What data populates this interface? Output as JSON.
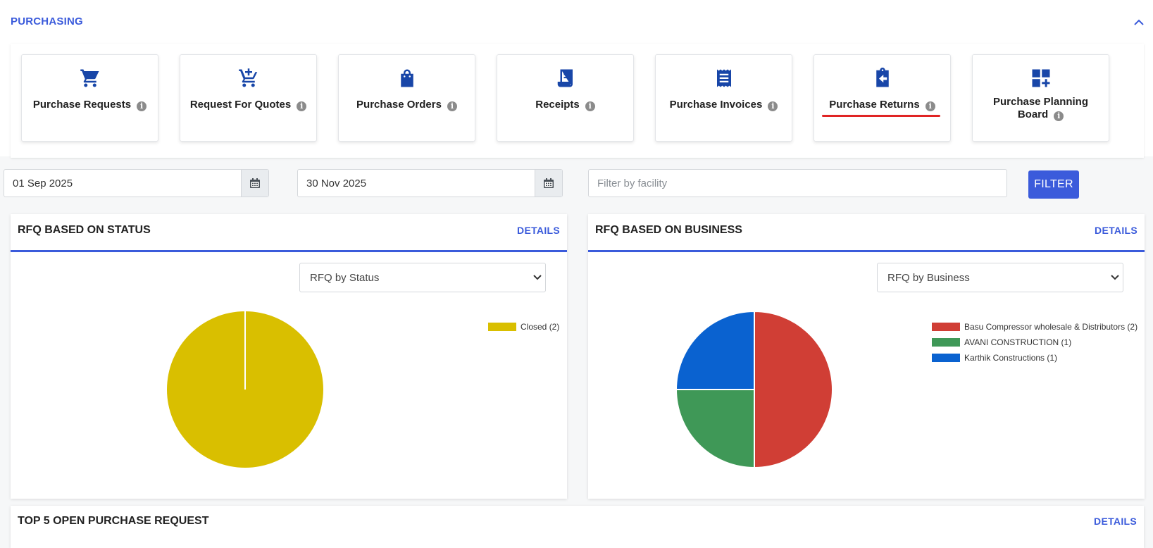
{
  "section": {
    "title": "PURCHASING"
  },
  "tiles": [
    {
      "label": "Purchase Requests",
      "icon": "cart-icon"
    },
    {
      "label": "Request For Quotes",
      "icon": "cart-plus-icon"
    },
    {
      "label": "Purchase Orders",
      "icon": "shopping-bag-icon"
    },
    {
      "label": "Receipts",
      "icon": "receipt-icon"
    },
    {
      "label": "Purchase Invoices",
      "icon": "invoice-icon"
    },
    {
      "label": "Purchase Returns",
      "icon": "return-clipboard-icon",
      "active": true
    },
    {
      "label": "Purchase Planning Board",
      "icon": "dashboard-plus-icon"
    }
  ],
  "filters": {
    "start_date": "01 Sep 2025",
    "end_date": "30 Nov 2025",
    "facility_placeholder": "Filter by facility",
    "filter_label": "FILTER"
  },
  "status_card": {
    "title": "RFQ BASED ON STATUS",
    "details": "DETAILS",
    "select": "RFQ by Status"
  },
  "business_card": {
    "title": "RFQ BASED ON BUSINESS",
    "details": "DETAILS",
    "select": "RFQ by Business"
  },
  "bottom_card": {
    "title": "TOP 5 OPEN PURCHASE REQUEST",
    "details": "DETAILS"
  },
  "colors": {
    "accent": "#3b5bdb",
    "active_underline": "#e02424"
  },
  "chart_data": [
    {
      "type": "pie",
      "categories": [
        "Closed"
      ],
      "values": [
        2
      ],
      "legend_labels": [
        "Closed (2)"
      ],
      "colors": [
        "#d9bf00"
      ],
      "legend": "top-right"
    },
    {
      "type": "pie",
      "categories": [
        "Basu Compressor wholesale & Distributors",
        "AVANI CONSTRUCTION",
        "Karthik Constructions"
      ],
      "values": [
        2,
        1,
        1
      ],
      "legend_labels": [
        "Basu Compressor wholesale & Distributors (2)",
        "AVANI CONSTRUCTION (1)",
        "Karthik Constructions (1)"
      ],
      "colors": [
        "#d03e35",
        "#3f9857",
        "#0a62d0"
      ],
      "legend": "top-right"
    }
  ]
}
